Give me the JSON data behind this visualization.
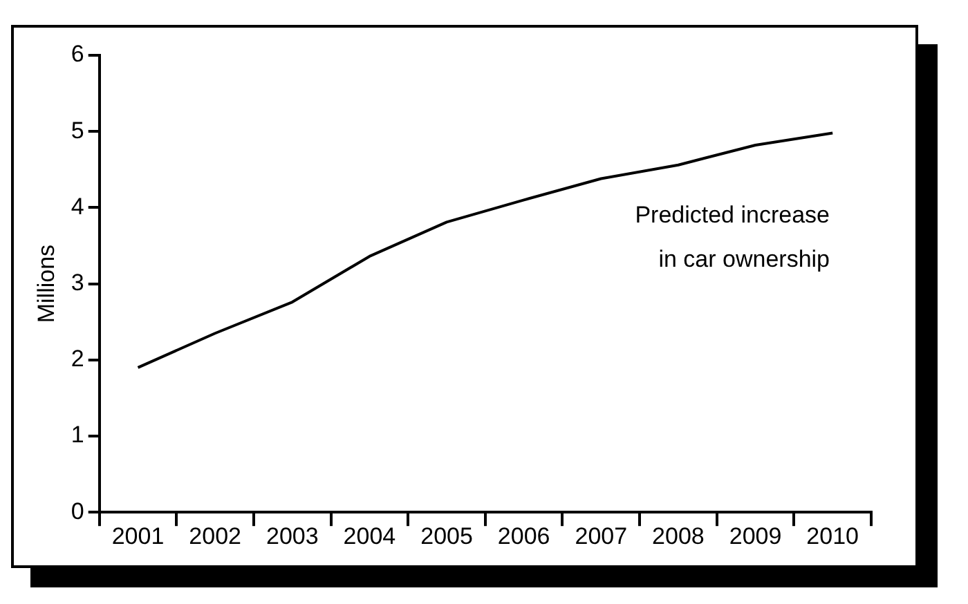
{
  "chart_data": {
    "type": "line",
    "ylabel": "Millions",
    "categories": [
      "2001",
      "2002",
      "2003",
      "2004",
      "2005",
      "2006",
      "2007",
      "2008",
      "2009",
      "2010"
    ],
    "values": [
      1.9,
      2.35,
      2.76,
      3.36,
      3.81,
      4.1,
      4.38,
      4.56,
      4.82,
      4.98
    ],
    "color": "#000000",
    "ylim": [
      0,
      6
    ],
    "yticks": [
      0,
      1,
      2,
      3,
      4,
      5,
      6
    ],
    "grid": false,
    "legend": false,
    "marker": "none",
    "line_style": "solid",
    "annotations": [
      "Predicted increase\nin car ownership"
    ]
  }
}
